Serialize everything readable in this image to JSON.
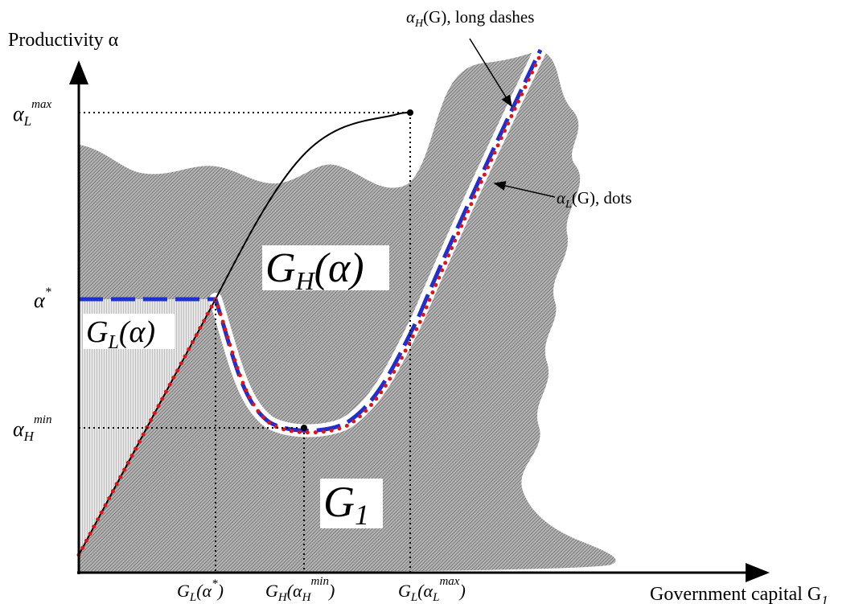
{
  "axes": {
    "y_label": "Productivity α",
    "x_label": "Government capital G"
  },
  "y_ticks": {
    "alpha_L_max": {
      "base": "α",
      "sub": "L",
      "sup": "max"
    },
    "alpha_star": {
      "base": "α",
      "sup": "*"
    },
    "alpha_H_min": {
      "base": "α",
      "sub": "H",
      "sup": "min"
    }
  },
  "x_ticks": {
    "G_L_alpha_star": {
      "base": "G",
      "sub": "L",
      "open": "(α",
      "sup": "*",
      "close": ")"
    },
    "G_H_alpha_H_min": {
      "base": "G",
      "sub": "H",
      "open": "(α",
      "sub2": "H",
      "sup": "min",
      "close": ")"
    },
    "G_L_alpha_L_max": {
      "base": "G",
      "sub": "L",
      "open": "(α",
      "sub2": "L",
      "sup": "max",
      "close": ")"
    }
  },
  "regions": {
    "GH": {
      "base": "G",
      "sub": "H",
      "arg": "(α)"
    },
    "GL": {
      "base": "G",
      "sub": "L",
      "arg": "(α)"
    },
    "G1": {
      "base": "G",
      "sub": "1"
    }
  },
  "annotations": {
    "alpha_H_G": {
      "base": "α",
      "sub": "H",
      "arg": "(G)",
      "desc": ", long dashes"
    },
    "alpha_L_G": {
      "base": "α",
      "sub": "L",
      "arg": "(G)",
      "desc": ", dots"
    }
  },
  "colors": {
    "dashes": "#1f2fd0",
    "dots": "#e01414",
    "shade": "#8f8f8f",
    "axis": "#000000"
  }
}
